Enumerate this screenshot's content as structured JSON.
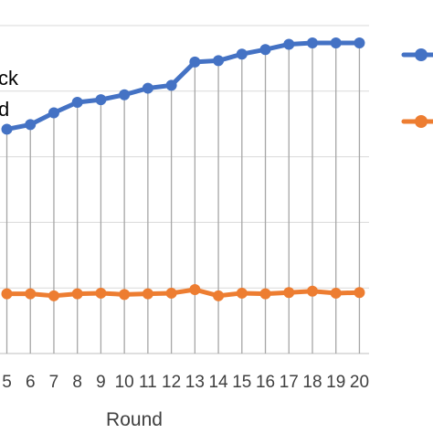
{
  "chart_data": {
    "type": "line",
    "xlabel": "Round",
    "ylabel": "",
    "x_visible": [
      5,
      6,
      7,
      8,
      9,
      10,
      11,
      12,
      13,
      14,
      15,
      16,
      17,
      18,
      19,
      20
    ],
    "tick_labels": [
      "5",
      "6",
      "7",
      "8",
      "9",
      "10",
      "11",
      "12",
      "13",
      "14",
      "15",
      "16",
      "17",
      "18",
      "19",
      "20"
    ],
    "annotation_lines": [
      "ck",
      "d"
    ],
    "gridlines": "horizontal",
    "legend_position": "right",
    "ylim": [
      0,
      1
    ],
    "series": [
      {
        "color": "#4472C4",
        "values": [
          0.684,
          0.698,
          0.734,
          0.766,
          0.774,
          0.789,
          0.809,
          0.818,
          0.889,
          0.893,
          0.913,
          0.927,
          0.943,
          0.947,
          0.947,
          0.947
        ]
      },
      {
        "color": "#ED7D31",
        "values": [
          0.182,
          0.182,
          0.176,
          0.182,
          0.184,
          0.18,
          0.182,
          0.184,
          0.195,
          0.176,
          0.184,
          0.182,
          0.186,
          0.19,
          0.184,
          0.186
        ]
      }
    ]
  }
}
